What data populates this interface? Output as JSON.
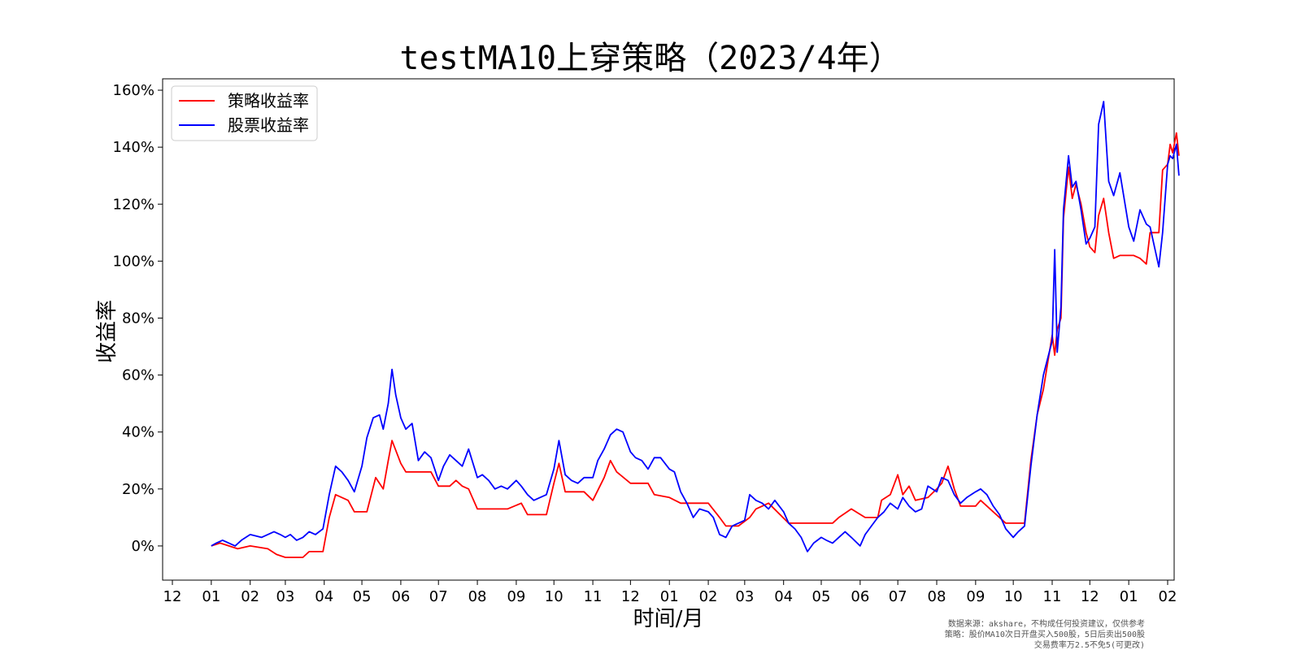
{
  "chart_data": {
    "type": "line",
    "title": "testMA10上穿策略（2023/4年）",
    "xlabel": "时间/月",
    "ylabel": "收益率",
    "x_axis": {
      "unit": "month",
      "range": [
        "2022-12",
        "2025-02"
      ],
      "tick_labels": [
        "12",
        "01",
        "02",
        "03",
        "04",
        "05",
        "06",
        "07",
        "08",
        "09",
        "10",
        "11",
        "12",
        "01",
        "02",
        "03",
        "04",
        "05",
        "06",
        "07",
        "08",
        "09",
        "10",
        "11",
        "12",
        "01",
        "02"
      ]
    },
    "y_axis": {
      "range": [
        -12,
        164
      ],
      "ticks": [
        0,
        20,
        40,
        60,
        80,
        100,
        120,
        140,
        160
      ],
      "tick_labels": [
        "0%",
        "20%",
        "40%",
        "60%",
        "80%",
        "100%",
        "120%",
        "140%",
        "160%"
      ]
    },
    "grid": false,
    "legend_placement": "top-left",
    "series": [
      {
        "name": "策略收益率",
        "color": "#ff0000",
        "points": [
          [
            "2023-01-01",
            0
          ],
          [
            "2023-01-08",
            1
          ],
          [
            "2023-01-15",
            0
          ],
          [
            "2023-01-22",
            -1
          ],
          [
            "2023-02-01",
            0
          ],
          [
            "2023-02-15",
            -1
          ],
          [
            "2023-02-22",
            -3
          ],
          [
            "2023-03-01",
            -4
          ],
          [
            "2023-03-15",
            -4
          ],
          [
            "2023-03-20",
            -2
          ],
          [
            "2023-03-31",
            -2
          ],
          [
            "2023-04-05",
            10
          ],
          [
            "2023-04-10",
            18
          ],
          [
            "2023-04-20",
            16
          ],
          [
            "2023-04-25",
            12
          ],
          [
            "2023-05-05",
            12
          ],
          [
            "2023-05-12",
            24
          ],
          [
            "2023-05-18",
            20
          ],
          [
            "2023-05-22",
            30
          ],
          [
            "2023-05-25",
            37
          ],
          [
            "2023-06-01",
            29
          ],
          [
            "2023-06-05",
            26
          ],
          [
            "2023-06-25",
            26
          ],
          [
            "2023-07-01",
            21
          ],
          [
            "2023-07-10",
            21
          ],
          [
            "2023-07-15",
            23
          ],
          [
            "2023-07-20",
            21
          ],
          [
            "2023-07-25",
            20
          ],
          [
            "2023-08-01",
            13
          ],
          [
            "2023-08-20",
            13
          ],
          [
            "2023-08-25",
            13
          ],
          [
            "2023-09-05",
            15
          ],
          [
            "2023-09-10",
            11
          ],
          [
            "2023-09-20",
            11
          ],
          [
            "2023-09-25",
            11
          ],
          [
            "2023-10-01",
            22
          ],
          [
            "2023-10-05",
            29
          ],
          [
            "2023-10-10",
            19
          ],
          [
            "2023-10-25",
            19
          ],
          [
            "2023-11-01",
            16
          ],
          [
            "2023-11-10",
            24
          ],
          [
            "2023-11-15",
            30
          ],
          [
            "2023-11-20",
            26
          ],
          [
            "2023-12-01",
            22
          ],
          [
            "2023-12-15",
            22
          ],
          [
            "2023-12-20",
            18
          ],
          [
            "2024-01-01",
            17
          ],
          [
            "2024-01-10",
            15
          ],
          [
            "2024-01-20",
            15
          ],
          [
            "2024-02-01",
            15
          ],
          [
            "2024-02-10",
            10
          ],
          [
            "2024-02-15",
            7
          ],
          [
            "2024-02-25",
            7
          ],
          [
            "2024-03-05",
            10
          ],
          [
            "2024-03-10",
            13
          ],
          [
            "2024-03-20",
            15
          ],
          [
            "2024-04-05",
            8
          ],
          [
            "2024-04-25",
            8
          ],
          [
            "2024-05-10",
            8
          ],
          [
            "2024-05-15",
            10
          ],
          [
            "2024-05-25",
            13
          ],
          [
            "2024-06-05",
            10
          ],
          [
            "2024-06-15",
            10
          ],
          [
            "2024-06-18",
            16
          ],
          [
            "2024-06-25",
            18
          ],
          [
            "2024-07-01",
            25
          ],
          [
            "2024-07-05",
            18
          ],
          [
            "2024-07-10",
            21
          ],
          [
            "2024-07-15",
            16
          ],
          [
            "2024-07-25",
            17
          ],
          [
            "2024-08-01",
            20
          ],
          [
            "2024-08-05",
            22
          ],
          [
            "2024-08-10",
            28
          ],
          [
            "2024-08-15",
            20
          ],
          [
            "2024-08-20",
            14
          ],
          [
            "2024-08-25",
            14
          ],
          [
            "2024-09-01",
            14
          ],
          [
            "2024-09-05",
            16
          ],
          [
            "2024-09-15",
            12
          ],
          [
            "2024-09-25",
            8
          ],
          [
            "2024-10-01",
            8
          ],
          [
            "2024-10-10",
            8
          ],
          [
            "2024-10-15",
            30
          ],
          [
            "2024-10-20",
            46
          ],
          [
            "2024-10-25",
            55
          ],
          [
            "2024-11-01",
            74
          ],
          [
            "2024-11-03",
            67
          ],
          [
            "2024-11-05",
            76
          ],
          [
            "2024-11-08",
            80
          ],
          [
            "2024-11-10",
            115
          ],
          [
            "2024-11-14",
            133
          ],
          [
            "2024-11-17",
            122
          ],
          [
            "2024-11-20",
            127
          ],
          [
            "2024-11-24",
            120
          ],
          [
            "2024-11-28",
            110
          ],
          [
            "2024-12-01",
            105
          ],
          [
            "2024-12-05",
            103
          ],
          [
            "2024-12-08",
            116
          ],
          [
            "2024-12-12",
            122
          ],
          [
            "2024-12-16",
            110
          ],
          [
            "2024-12-20",
            101
          ],
          [
            "2024-12-25",
            102
          ],
          [
            "2025-01-05",
            102
          ],
          [
            "2025-01-10",
            101
          ],
          [
            "2025-01-15",
            99
          ],
          [
            "2025-01-18",
            110
          ],
          [
            "2025-01-25",
            110
          ],
          [
            "2025-01-28",
            132
          ],
          [
            "2025-02-01",
            134
          ],
          [
            "2025-02-03",
            141
          ],
          [
            "2025-02-05",
            138
          ],
          [
            "2025-02-08",
            145
          ],
          [
            "2025-02-10",
            137
          ]
        ]
      },
      {
        "name": "股票收益率",
        "color": "#0000ff",
        "points": [
          [
            "2023-01-01",
            0
          ],
          [
            "2023-01-05",
            1
          ],
          [
            "2023-01-10",
            2
          ],
          [
            "2023-01-15",
            1
          ],
          [
            "2023-01-20",
            0
          ],
          [
            "2023-01-25",
            2
          ],
          [
            "2023-02-01",
            4
          ],
          [
            "2023-02-10",
            3
          ],
          [
            "2023-02-15",
            4
          ],
          [
            "2023-02-20",
            5
          ],
          [
            "2023-02-25",
            4
          ],
          [
            "2023-03-01",
            3
          ],
          [
            "2023-03-05",
            4
          ],
          [
            "2023-03-10",
            2
          ],
          [
            "2023-03-15",
            3
          ],
          [
            "2023-03-20",
            5
          ],
          [
            "2023-03-25",
            4
          ],
          [
            "2023-03-31",
            6
          ],
          [
            "2023-04-05",
            18
          ],
          [
            "2023-04-10",
            28
          ],
          [
            "2023-04-15",
            26
          ],
          [
            "2023-04-20",
            23
          ],
          [
            "2023-04-25",
            19
          ],
          [
            "2023-05-01",
            28
          ],
          [
            "2023-05-05",
            38
          ],
          [
            "2023-05-10",
            45
          ],
          [
            "2023-05-15",
            46
          ],
          [
            "2023-05-18",
            41
          ],
          [
            "2023-05-22",
            50
          ],
          [
            "2023-05-25",
            62
          ],
          [
            "2023-05-28",
            53
          ],
          [
            "2023-06-01",
            45
          ],
          [
            "2023-06-05",
            41
          ],
          [
            "2023-06-10",
            43
          ],
          [
            "2023-06-15",
            30
          ],
          [
            "2023-06-20",
            33
          ],
          [
            "2023-06-25",
            31
          ],
          [
            "2023-07-01",
            23
          ],
          [
            "2023-07-05",
            28
          ],
          [
            "2023-07-10",
            32
          ],
          [
            "2023-07-15",
            30
          ],
          [
            "2023-07-20",
            28
          ],
          [
            "2023-07-25",
            34
          ],
          [
            "2023-08-01",
            24
          ],
          [
            "2023-08-05",
            25
          ],
          [
            "2023-08-10",
            23
          ],
          [
            "2023-08-15",
            20
          ],
          [
            "2023-08-20",
            21
          ],
          [
            "2023-08-25",
            20
          ],
          [
            "2023-09-01",
            23
          ],
          [
            "2023-09-05",
            21
          ],
          [
            "2023-09-10",
            18
          ],
          [
            "2023-09-15",
            16
          ],
          [
            "2023-09-20",
            17
          ],
          [
            "2023-09-25",
            18
          ],
          [
            "2023-10-01",
            27
          ],
          [
            "2023-10-05",
            37
          ],
          [
            "2023-10-10",
            25
          ],
          [
            "2023-10-15",
            23
          ],
          [
            "2023-10-20",
            22
          ],
          [
            "2023-10-25",
            24
          ],
          [
            "2023-11-01",
            24
          ],
          [
            "2023-11-05",
            30
          ],
          [
            "2023-11-10",
            34
          ],
          [
            "2023-11-15",
            39
          ],
          [
            "2023-11-20",
            41
          ],
          [
            "2023-11-25",
            40
          ],
          [
            "2023-12-01",
            33
          ],
          [
            "2023-12-05",
            31
          ],
          [
            "2023-12-10",
            30
          ],
          [
            "2023-12-15",
            27
          ],
          [
            "2023-12-20",
            31
          ],
          [
            "2023-12-25",
            31
          ],
          [
            "2024-01-01",
            27
          ],
          [
            "2024-01-05",
            26
          ],
          [
            "2024-01-10",
            19
          ],
          [
            "2024-01-15",
            15
          ],
          [
            "2024-01-20",
            10
          ],
          [
            "2024-01-25",
            13
          ],
          [
            "2024-02-01",
            12
          ],
          [
            "2024-02-05",
            10
          ],
          [
            "2024-02-10",
            4
          ],
          [
            "2024-02-15",
            3
          ],
          [
            "2024-02-20",
            7
          ],
          [
            "2024-02-25",
            8
          ],
          [
            "2024-03-01",
            9
          ],
          [
            "2024-03-05",
            18
          ],
          [
            "2024-03-10",
            16
          ],
          [
            "2024-03-15",
            15
          ],
          [
            "2024-03-20",
            13
          ],
          [
            "2024-03-25",
            16
          ],
          [
            "2024-04-01",
            12
          ],
          [
            "2024-04-05",
            8
          ],
          [
            "2024-04-10",
            6
          ],
          [
            "2024-04-15",
            3
          ],
          [
            "2024-04-20",
            -2
          ],
          [
            "2024-04-25",
            1
          ],
          [
            "2024-05-01",
            3
          ],
          [
            "2024-05-05",
            2
          ],
          [
            "2024-05-10",
            1
          ],
          [
            "2024-05-15",
            3
          ],
          [
            "2024-05-20",
            5
          ],
          [
            "2024-05-25",
            3
          ],
          [
            "2024-06-01",
            0
          ],
          [
            "2024-06-05",
            4
          ],
          [
            "2024-06-10",
            7
          ],
          [
            "2024-06-15",
            10
          ],
          [
            "2024-06-20",
            12
          ],
          [
            "2024-06-25",
            15
          ],
          [
            "2024-07-01",
            13
          ],
          [
            "2024-07-05",
            17
          ],
          [
            "2024-07-10",
            14
          ],
          [
            "2024-07-15",
            12
          ],
          [
            "2024-07-20",
            13
          ],
          [
            "2024-07-25",
            21
          ],
          [
            "2024-08-01",
            19
          ],
          [
            "2024-08-05",
            24
          ],
          [
            "2024-08-10",
            23
          ],
          [
            "2024-08-15",
            18
          ],
          [
            "2024-08-20",
            15
          ],
          [
            "2024-08-25",
            17
          ],
          [
            "2024-09-01",
            19
          ],
          [
            "2024-09-05",
            20
          ],
          [
            "2024-09-10",
            18
          ],
          [
            "2024-09-15",
            14
          ],
          [
            "2024-09-20",
            11
          ],
          [
            "2024-09-25",
            6
          ],
          [
            "2024-10-01",
            3
          ],
          [
            "2024-10-05",
            5
          ],
          [
            "2024-10-10",
            7
          ],
          [
            "2024-10-15",
            28
          ],
          [
            "2024-10-20",
            46
          ],
          [
            "2024-10-25",
            60
          ],
          [
            "2024-11-01",
            72
          ],
          [
            "2024-11-03",
            104
          ],
          [
            "2024-11-05",
            68
          ],
          [
            "2024-11-08",
            84
          ],
          [
            "2024-11-10",
            118
          ],
          [
            "2024-11-14",
            137
          ],
          [
            "2024-11-17",
            126
          ],
          [
            "2024-11-20",
            128
          ],
          [
            "2024-11-24",
            118
          ],
          [
            "2024-11-28",
            106
          ],
          [
            "2024-12-01",
            108
          ],
          [
            "2024-12-05",
            112
          ],
          [
            "2024-12-08",
            148
          ],
          [
            "2024-12-12",
            156
          ],
          [
            "2024-12-16",
            128
          ],
          [
            "2024-12-20",
            123
          ],
          [
            "2024-12-25",
            131
          ],
          [
            "2025-01-01",
            112
          ],
          [
            "2025-01-05",
            107
          ],
          [
            "2025-01-10",
            118
          ],
          [
            "2025-01-15",
            113
          ],
          [
            "2025-01-18",
            112
          ],
          [
            "2025-01-25",
            98
          ],
          [
            "2025-01-28",
            110
          ],
          [
            "2025-02-01",
            134
          ],
          [
            "2025-02-03",
            137
          ],
          [
            "2025-02-05",
            136
          ],
          [
            "2025-02-08",
            141
          ],
          [
            "2025-02-10",
            130
          ]
        ]
      }
    ]
  },
  "footnote": {
    "line1": "数据来源：akshare，不构成任何投资建议，仅供参考",
    "line2": "策略：股价MA10次日开盘买入500股，5日后卖出500股",
    "line3": "交易费率万2.5不免5(可更改)"
  }
}
